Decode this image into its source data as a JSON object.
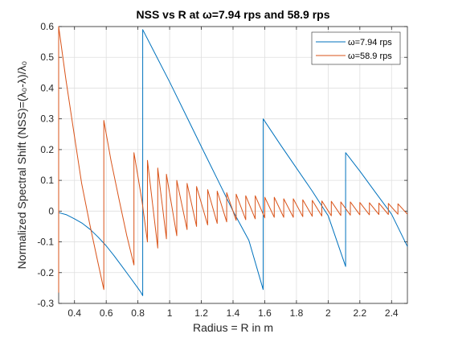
{
  "chart_data": {
    "type": "line",
    "title": "NSS vs R at ω=7.94 rps and 58.9 rps",
    "xlabel": "Radius = R in m",
    "ylabel": "Normalized Spectral Shift (NSS)=(λ₀-λ)/λ₀",
    "xlim": [
      0.3,
      2.5
    ],
    "ylim": [
      -0.3,
      0.6
    ],
    "xticks": [
      "0.4",
      "0.6",
      "0.8",
      "1",
      "1.2",
      "1.4",
      "1.6",
      "1.8",
      "2",
      "2.2",
      "2.4"
    ],
    "xtick_values": [
      0.4,
      0.6,
      0.8,
      1.0,
      1.2,
      1.4,
      1.6,
      1.8,
      2.0,
      2.2,
      2.4
    ],
    "yticks": [
      "-0.3",
      "-0.2",
      "-0.1",
      "0",
      "0.1",
      "0.2",
      "0.3",
      "0.4",
      "0.5",
      "0.6"
    ],
    "ytick_values": [
      -0.3,
      -0.2,
      -0.1,
      0,
      0.1,
      0.2,
      0.3,
      0.4,
      0.5,
      0.6
    ],
    "grid": true,
    "legend_position": "top-right",
    "series": [
      {
        "name": "ω=7.94 rps",
        "color": "#0072BD",
        "x": [
          0.3,
          0.35,
          0.4,
          0.45,
          0.5,
          0.55,
          0.6,
          0.65,
          0.7,
          0.75,
          0.8,
          0.82,
          0.83,
          0.83,
          0.9,
          1.0,
          1.1,
          1.2,
          1.3,
          1.4,
          1.5,
          1.59,
          1.59,
          1.7,
          1.8,
          1.9,
          2.0,
          2.11,
          2.11,
          2.2,
          2.3,
          2.4,
          2.5
        ],
        "y": [
          -0.005,
          -0.012,
          -0.025,
          -0.04,
          -0.06,
          -0.085,
          -0.113,
          -0.145,
          -0.18,
          -0.215,
          -0.25,
          -0.265,
          -0.275,
          0.59,
          0.52,
          0.42,
          0.315,
          0.21,
          0.105,
          0.0,
          -0.095,
          -0.255,
          0.3,
          0.215,
          0.14,
          0.065,
          -0.015,
          -0.18,
          0.19,
          0.13,
          0.06,
          -0.01,
          -0.115
        ]
      },
      {
        "name": "ω=58.9 rps",
        "color": "#D95319",
        "x": [
          0.3,
          0.3,
          0.345,
          0.395,
          0.445,
          0.495,
          0.545,
          0.585,
          0.585,
          0.63,
          0.68,
          0.73,
          0.775,
          0.775,
          0.825,
          0.86,
          0.86,
          0.925,
          0.925,
          0.98,
          0.98,
          1.045,
          1.045,
          1.11,
          1.11,
          1.17,
          1.17,
          1.24,
          1.24,
          1.3,
          1.3,
          1.36,
          1.36,
          1.42,
          1.42,
          1.48,
          1.48,
          1.54,
          1.54,
          1.6,
          1.6,
          1.66,
          1.66,
          1.72,
          1.72,
          1.78,
          1.78,
          1.84,
          1.84,
          1.9,
          1.9,
          1.96,
          1.96,
          2.02,
          2.02,
          2.08,
          2.08,
          2.14,
          2.14,
          2.2,
          2.2,
          2.26,
          2.26,
          2.32,
          2.32,
          2.38,
          2.38,
          2.44,
          2.44,
          2.5
        ],
        "y": [
          -0.265,
          0.6,
          0.43,
          0.26,
          0.09,
          -0.04,
          -0.16,
          -0.255,
          0.295,
          0.165,
          0.04,
          -0.08,
          -0.175,
          0.19,
          0.035,
          -0.1,
          0.165,
          -0.12,
          0.14,
          -0.09,
          0.12,
          -0.08,
          0.1,
          -0.06,
          0.09,
          -0.05,
          0.08,
          -0.045,
          0.07,
          -0.04,
          0.065,
          -0.035,
          0.06,
          -0.03,
          0.055,
          -0.028,
          0.05,
          -0.025,
          0.05,
          -0.022,
          0.045,
          -0.02,
          0.045,
          -0.02,
          0.04,
          -0.02,
          0.04,
          -0.018,
          0.037,
          -0.017,
          0.035,
          -0.016,
          0.033,
          -0.015,
          0.032,
          -0.014,
          0.03,
          -0.013,
          0.03,
          -0.012,
          0.028,
          -0.012,
          0.027,
          -0.011,
          0.026,
          -0.011,
          0.025,
          -0.01,
          0.024,
          -0.01
        ]
      }
    ]
  }
}
